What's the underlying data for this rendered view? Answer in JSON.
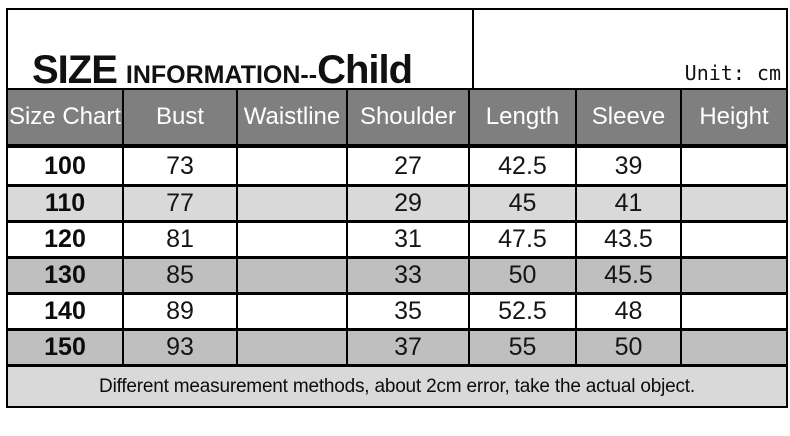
{
  "title": {
    "size": "SIZE",
    "information": "INFORMATION--",
    "child": "Child",
    "unit": "Unit: cm"
  },
  "table": {
    "headers": [
      "Size Chart",
      "Bust",
      "Waistline",
      "Shoulder",
      "Length",
      "Sleeve",
      "Height"
    ],
    "rows": [
      [
        "100",
        "73",
        "",
        "27",
        "42.5",
        "39",
        ""
      ],
      [
        "110",
        "77",
        "",
        "29",
        "45",
        "41",
        ""
      ],
      [
        "120",
        "81",
        "",
        "31",
        "47.5",
        "43.5",
        ""
      ],
      [
        "130",
        "85",
        "",
        "33",
        "50",
        "45.5",
        ""
      ],
      [
        "140",
        "89",
        "",
        "35",
        "52.5",
        "48",
        ""
      ],
      [
        "150",
        "93",
        "",
        "37",
        "55",
        "50",
        ""
      ]
    ]
  },
  "footer": {
    "note": "Different measurement methods, about 2cm error, take the actual object."
  },
  "colors": {
    "header_bg": "#7f7f7f",
    "header_text": "#ffffff",
    "row_alt_light": "#d9d9d9",
    "row_alt_dark": "#bfbfbf",
    "footer_bg": "#d9d9d9",
    "border": "#000000"
  }
}
